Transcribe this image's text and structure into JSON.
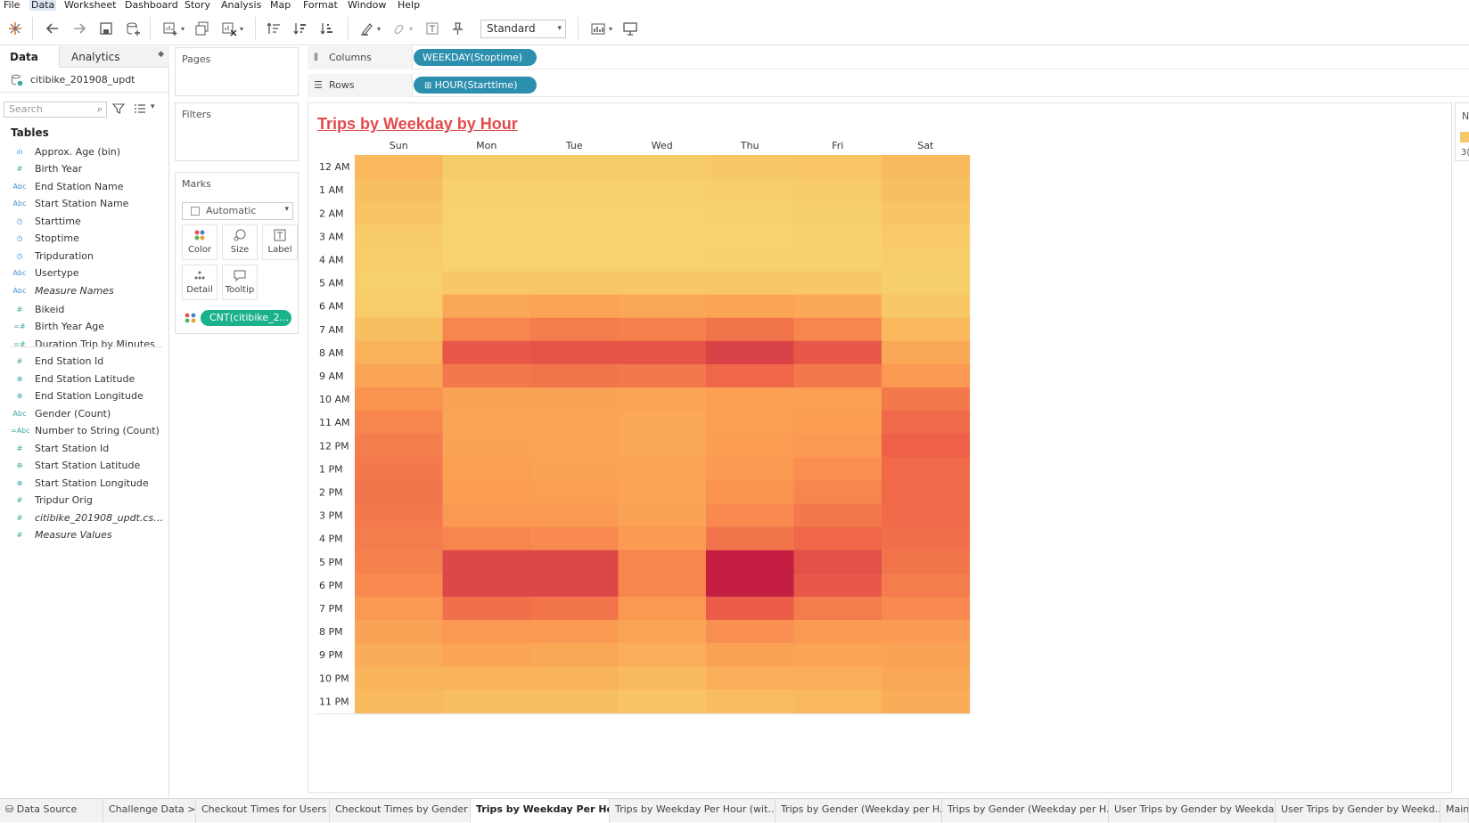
{
  "menu": [
    "File",
    "Data",
    "Worksheet",
    "Dashboard",
    "Story",
    "Analysis",
    "Map",
    "Format",
    "Window",
    "Help"
  ],
  "menu_active": "Data",
  "toolbar": {
    "fit_select": "Standard",
    "icons": [
      "tableau-logo-icon",
      "undo-icon",
      "redo-icon",
      "save-icon",
      "new-datasource-icon",
      "new-worksheet-icon",
      "duplicate-icon",
      "clear-icon",
      "swap-icon",
      "sort-asc-icon",
      "sort-desc-icon",
      "highlight-icon",
      "group-icon",
      "label-icon",
      "pin-icon",
      "show-me-icon",
      "presentation-icon"
    ]
  },
  "data_pane": {
    "tab_data": "Data",
    "tab_analytics": "Analytics",
    "datasource": "citibike_201908_updt",
    "search_placeholder": "Search",
    "tables_heading": "Tables",
    "fields": [
      {
        "icon": "ılı",
        "label": "Approx. Age (bin)",
        "italic": false,
        "kind": "dim"
      },
      {
        "icon": "#",
        "label": "Birth Year",
        "italic": false,
        "kind": "mea"
      },
      {
        "icon": "Abc",
        "label": "End Station Name",
        "italic": false,
        "kind": "dim"
      },
      {
        "icon": "Abc",
        "label": "Start Station Name",
        "italic": false,
        "kind": "dim"
      },
      {
        "icon": "◷",
        "label": "Starttime",
        "italic": false,
        "kind": "dim"
      },
      {
        "icon": "◷",
        "label": "Stoptime",
        "italic": false,
        "kind": "dim"
      },
      {
        "icon": "◷",
        "label": "Tripduration",
        "italic": false,
        "kind": "dim"
      },
      {
        "icon": "Abc",
        "label": "Usertype",
        "italic": false,
        "kind": "dim"
      },
      {
        "icon": "Abc",
        "label": "Measure Names",
        "italic": true,
        "kind": "dim"
      },
      {
        "icon": "#",
        "label": "Bikeid",
        "italic": false,
        "kind": "mea"
      },
      {
        "icon": "=#",
        "label": "Birth Year Age",
        "italic": false,
        "kind": "mea"
      },
      {
        "icon": "=#",
        "label": "Duration Trip by Minutes",
        "italic": false,
        "kind": "mea"
      },
      {
        "icon": "#",
        "label": "End Station Id",
        "italic": false,
        "kind": "mea"
      },
      {
        "icon": "⊕",
        "label": "End Station Latitude",
        "italic": false,
        "kind": "mea"
      },
      {
        "icon": "⊕",
        "label": "End Station Longitude",
        "italic": false,
        "kind": "mea"
      },
      {
        "icon": "Abc",
        "label": "Gender (Count)",
        "italic": false,
        "kind": "mea"
      },
      {
        "icon": "=Abc",
        "label": "Number to String (Count)",
        "italic": false,
        "kind": "mea"
      },
      {
        "icon": "#",
        "label": "Start Station Id",
        "italic": false,
        "kind": "mea"
      },
      {
        "icon": "⊕",
        "label": "Start Station Latitude",
        "italic": false,
        "kind": "mea"
      },
      {
        "icon": "⊕",
        "label": "Start Station Longitude",
        "italic": false,
        "kind": "mea"
      },
      {
        "icon": "#",
        "label": "Tripdur Orig",
        "italic": false,
        "kind": "mea"
      },
      {
        "icon": "#",
        "label": "citibike_201908_updt.csv ...",
        "italic": true,
        "kind": "mea"
      },
      {
        "icon": "#",
        "label": "Measure Values",
        "italic": true,
        "kind": "mea"
      }
    ]
  },
  "shelves": {
    "pages_label": "Pages",
    "filters_label": "Filters",
    "marks_label": "Marks",
    "marks_type": "Automatic",
    "marks_buttons": [
      "Color",
      "Size",
      "Label",
      "Detail",
      "Tooltip"
    ],
    "marks_pill": "CNT(citibike_2...",
    "columns_label": "Columns",
    "columns_pill": "WEEKDAY(Stoptime)",
    "rows_label": "Rows",
    "rows_pill": "HOUR(Starttime)"
  },
  "viz": {
    "title": "Trips by Weekday by Hour"
  },
  "legend": {
    "title": "N",
    "value": "3("
  },
  "colors": {
    "low": "#f6cf6e",
    "mid": "#fb9b50",
    "high": "#e95a48",
    "max": "#c21b42",
    "pill_dimension": "#2c8fae",
    "pill_measure": "#19b28a"
  },
  "chart_data": {
    "type": "heatmap",
    "title": "Trips by Weekday by Hour",
    "x": [
      "Sun",
      "Mon",
      "Tue",
      "Wed",
      "Thu",
      "Fri",
      "Sat"
    ],
    "y": [
      "12 AM",
      "1 AM",
      "2 AM",
      "3 AM",
      "4 AM",
      "5 AM",
      "6 AM",
      "7 AM",
      "8 AM",
      "9 AM",
      "10 AM",
      "11 AM",
      "12 PM",
      "1 PM",
      "2 PM",
      "3 PM",
      "4 PM",
      "5 PM",
      "6 PM",
      "7 PM",
      "8 PM",
      "9 PM",
      "10 PM",
      "11 PM"
    ],
    "color_scale": "relative intensity 0-1 (no numeric legend values visible)",
    "values": [
      [
        0.24,
        0.08,
        0.08,
        0.08,
        0.1,
        0.12,
        0.22
      ],
      [
        0.18,
        0.04,
        0.04,
        0.04,
        0.06,
        0.08,
        0.18
      ],
      [
        0.14,
        0.02,
        0.02,
        0.02,
        0.03,
        0.05,
        0.14
      ],
      [
        0.08,
        0.01,
        0.01,
        0.01,
        0.02,
        0.03,
        0.09
      ],
      [
        0.06,
        0.02,
        0.02,
        0.02,
        0.03,
        0.03,
        0.06
      ],
      [
        0.04,
        0.1,
        0.1,
        0.1,
        0.11,
        0.1,
        0.05
      ],
      [
        0.07,
        0.38,
        0.4,
        0.38,
        0.4,
        0.36,
        0.1
      ],
      [
        0.18,
        0.58,
        0.62,
        0.6,
        0.66,
        0.58,
        0.24
      ],
      [
        0.3,
        0.78,
        0.8,
        0.8,
        0.88,
        0.78,
        0.38
      ],
      [
        0.4,
        0.64,
        0.66,
        0.64,
        0.72,
        0.64,
        0.5
      ],
      [
        0.52,
        0.42,
        0.42,
        0.4,
        0.44,
        0.44,
        0.64
      ],
      [
        0.58,
        0.4,
        0.4,
        0.38,
        0.44,
        0.46,
        0.7
      ],
      [
        0.62,
        0.42,
        0.4,
        0.38,
        0.46,
        0.5,
        0.74
      ],
      [
        0.64,
        0.44,
        0.42,
        0.4,
        0.48,
        0.54,
        0.7
      ],
      [
        0.66,
        0.46,
        0.44,
        0.4,
        0.52,
        0.58,
        0.7
      ],
      [
        0.64,
        0.5,
        0.48,
        0.42,
        0.56,
        0.64,
        0.7
      ],
      [
        0.62,
        0.58,
        0.56,
        0.48,
        0.66,
        0.72,
        0.68
      ],
      [
        0.6,
        0.86,
        0.86,
        0.58,
        0.99,
        0.82,
        0.66
      ],
      [
        0.56,
        0.86,
        0.86,
        0.58,
        0.99,
        0.78,
        0.62
      ],
      [
        0.5,
        0.68,
        0.66,
        0.5,
        0.76,
        0.62,
        0.56
      ],
      [
        0.42,
        0.5,
        0.48,
        0.4,
        0.54,
        0.48,
        0.48
      ],
      [
        0.34,
        0.4,
        0.38,
        0.32,
        0.42,
        0.4,
        0.42
      ],
      [
        0.28,
        0.28,
        0.28,
        0.22,
        0.32,
        0.32,
        0.38
      ],
      [
        0.22,
        0.18,
        0.18,
        0.14,
        0.2,
        0.24,
        0.34
      ]
    ]
  },
  "sheet_tabs": [
    {
      "label": "Data Source",
      "active": false
    },
    {
      "label": "Challenge Data >",
      "active": false
    },
    {
      "label": "Checkout Times for Users",
      "active": false
    },
    {
      "label": "Checkout Times by Gender",
      "active": false
    },
    {
      "label": "Trips by Weekday Per Hour",
      "active": true
    },
    {
      "label": "Trips by Weekday Per Hour (wit...",
      "active": false
    },
    {
      "label": "Trips by Gender (Weekday per H...",
      "active": false
    },
    {
      "label": "Trips by Gender (Weekday per H...",
      "active": false
    },
    {
      "label": "User Trips by Gender by Weekday",
      "active": false
    },
    {
      "label": "User Trips by Gender by Weekd...",
      "active": false
    },
    {
      "label": "Main",
      "active": false
    }
  ]
}
